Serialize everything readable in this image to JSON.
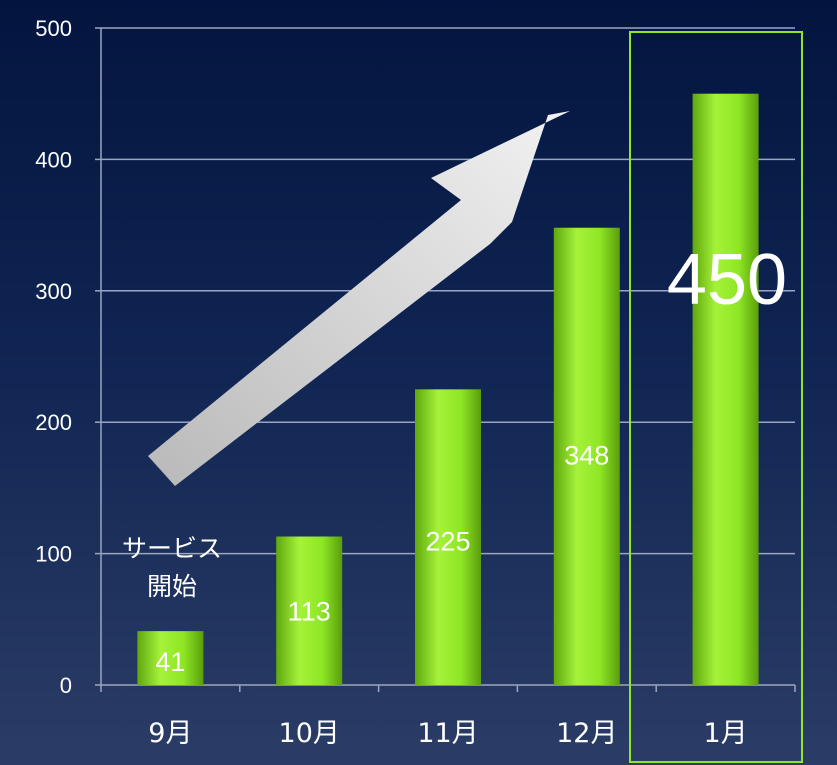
{
  "chart_data": {
    "type": "bar",
    "categories": [
      "9月",
      "10月",
      "11月",
      "12月",
      "1月"
    ],
    "values": [
      41,
      113,
      225,
      348,
      450
    ],
    "ylim": [
      0,
      500
    ],
    "yticks": [
      0,
      100,
      200,
      300,
      400,
      500
    ],
    "grid": true,
    "colors": {
      "bar": "#8ee624",
      "grid": "#9aa6bf",
      "highlight_box": "#8ee624",
      "arrow": "#e6e6e6"
    }
  },
  "annotations": {
    "service_start_line1": "サービス",
    "service_start_line2": "開始",
    "highlight_value": "450"
  }
}
